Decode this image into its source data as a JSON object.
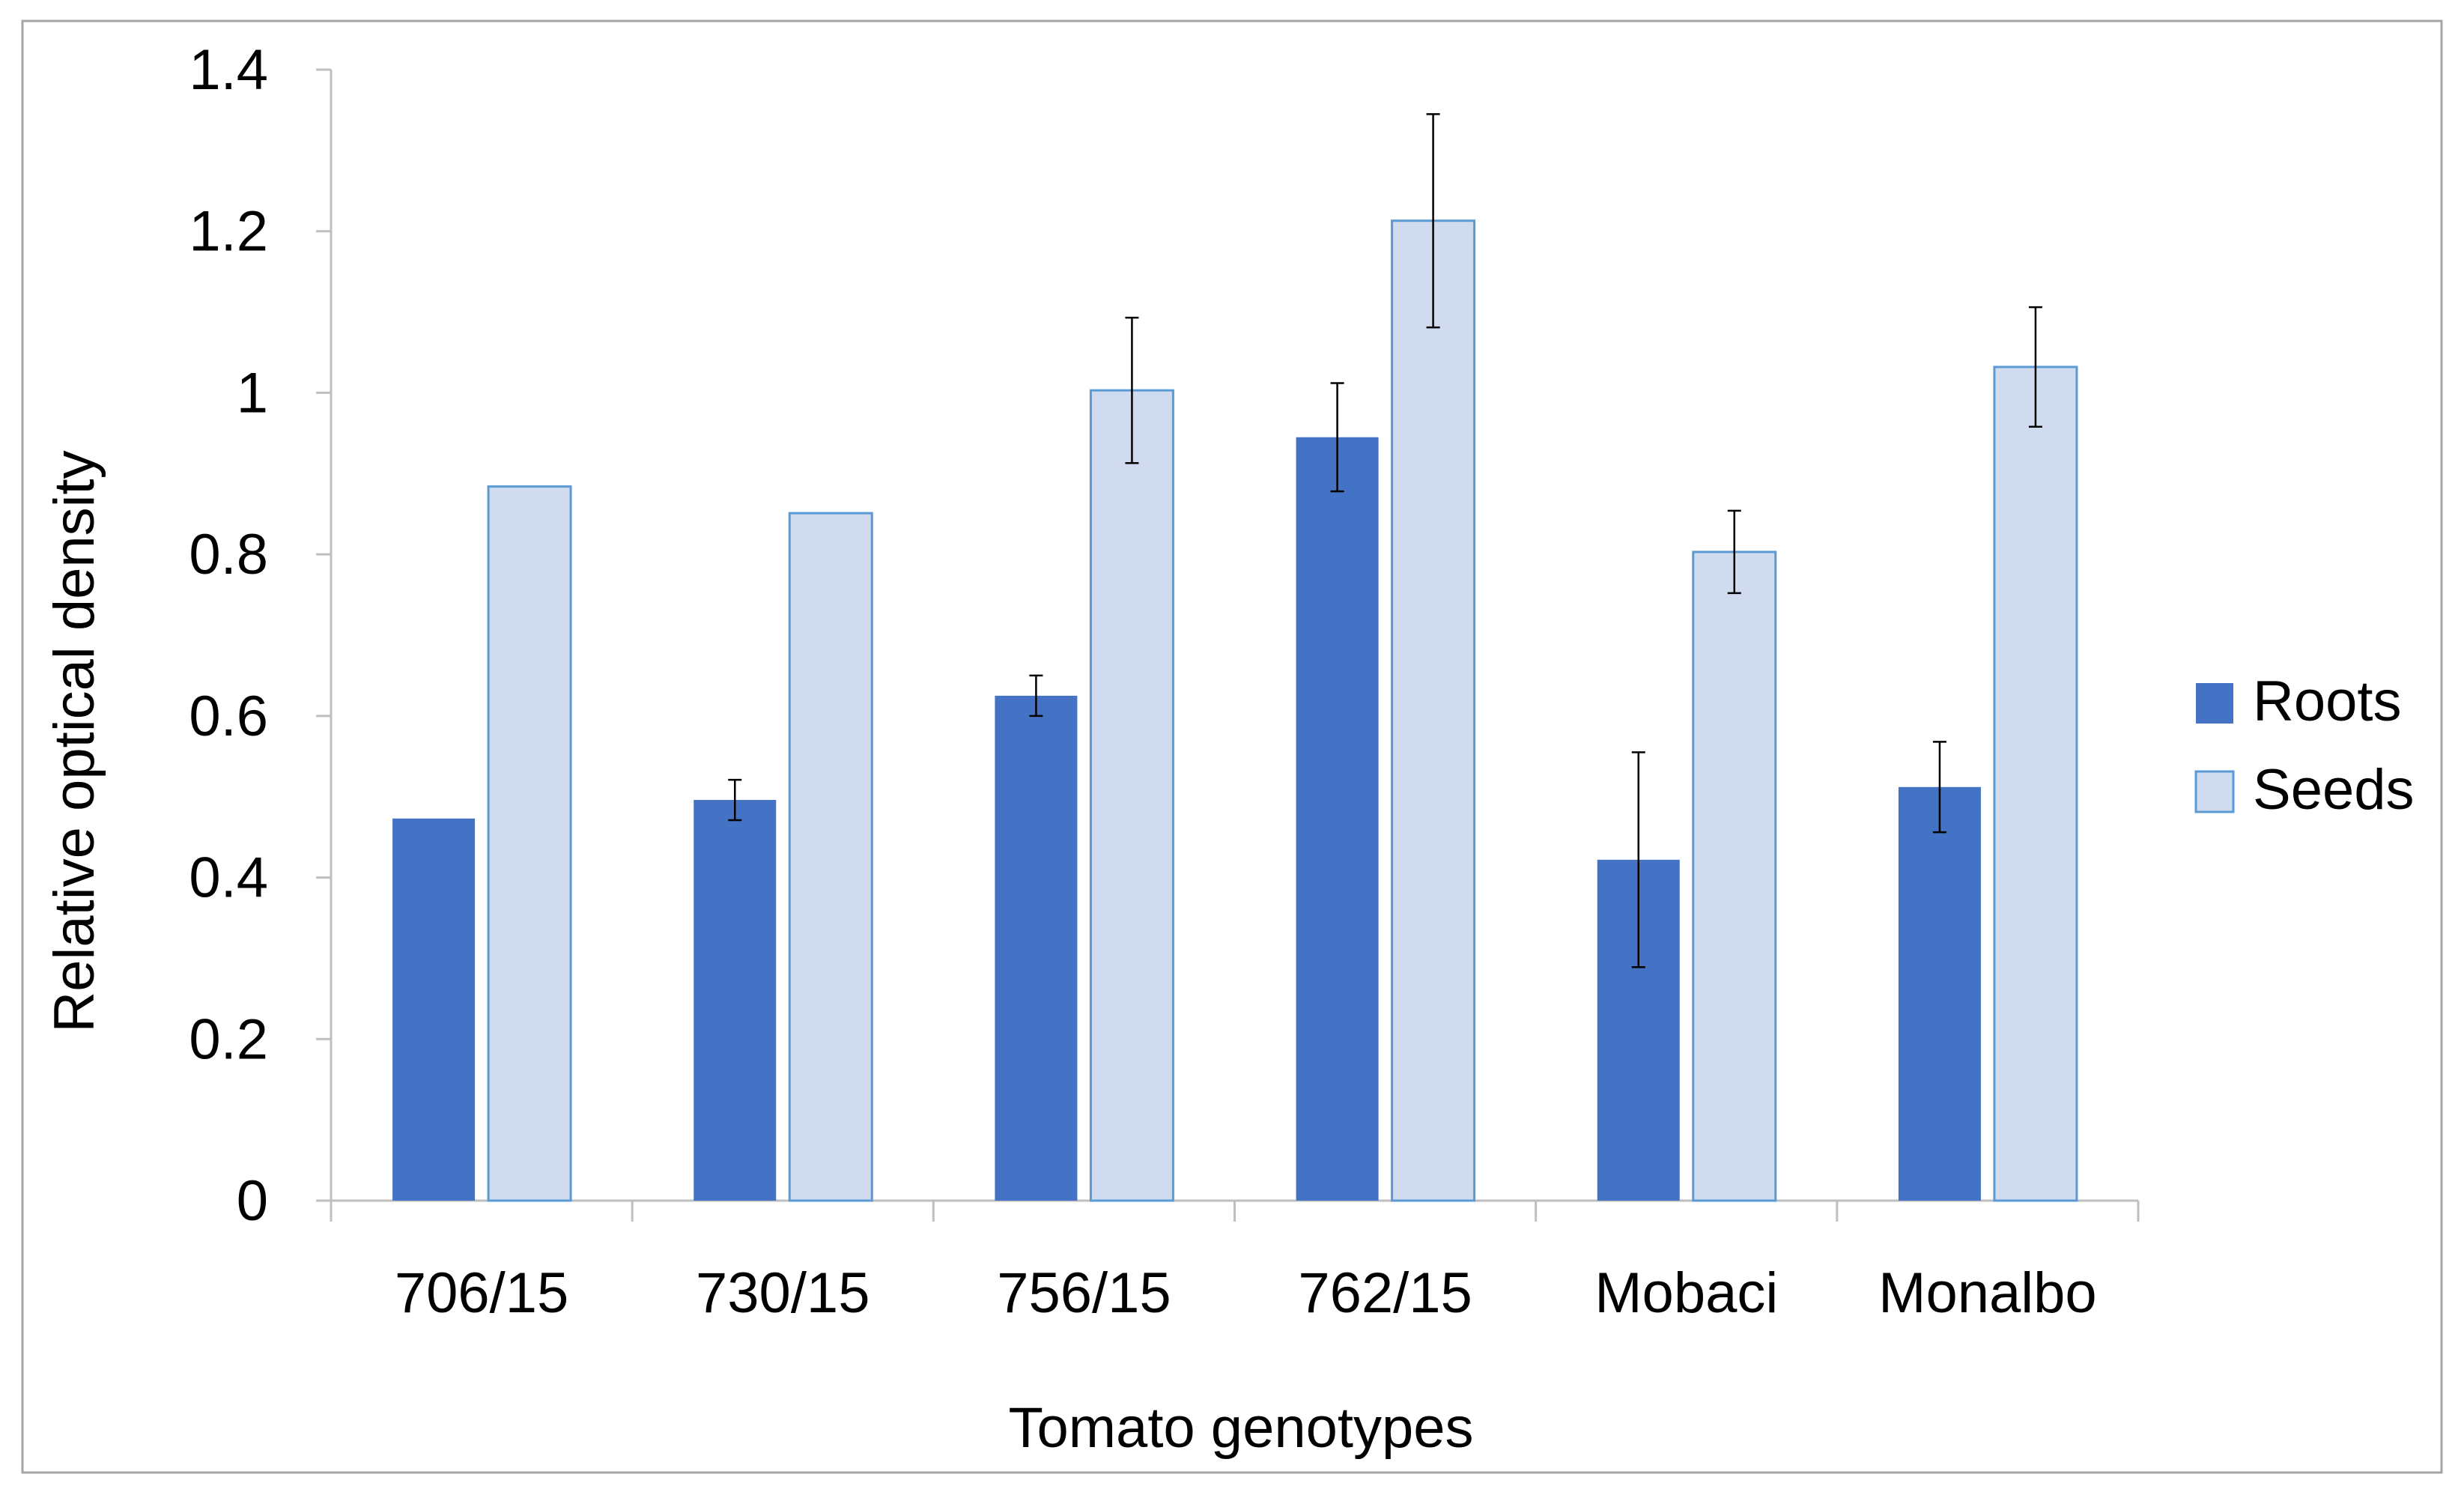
{
  "chart_data": {
    "type": "bar",
    "title": "",
    "xlabel": "Tomato genotypes",
    "ylabel": "Relative optical density",
    "categories": [
      "706/15",
      "730/15",
      "756/15",
      "762/15",
      "Mobaci",
      "Monalbo"
    ],
    "ylim": [
      0,
      1.4
    ],
    "yticks": [
      0,
      0.2,
      0.4,
      0.6,
      0.8,
      1,
      1.2,
      1.4
    ],
    "ytick_labels": [
      "0",
      "0.2",
      "0.4",
      "0.6",
      "0.8",
      "1",
      "1.2",
      "1.4"
    ],
    "grid": false,
    "legend_position": "right",
    "series": [
      {
        "name": "Roots",
        "color": "#4472c4",
        "values": [
          0.473,
          0.496,
          0.625,
          0.945,
          0.422,
          0.512
        ],
        "errors": [
          0.0,
          0.025,
          0.025,
          0.067,
          0.133,
          0.056
        ]
      },
      {
        "name": "Seeds",
        "color": "#d0dbef",
        "edge_color": "#5b9bd5",
        "values": [
          0.884,
          0.851,
          1.003,
          1.213,
          0.803,
          1.032
        ],
        "errors": [
          0.0,
          0.0,
          0.09,
          0.132,
          0.051,
          0.074
        ]
      }
    ]
  }
}
